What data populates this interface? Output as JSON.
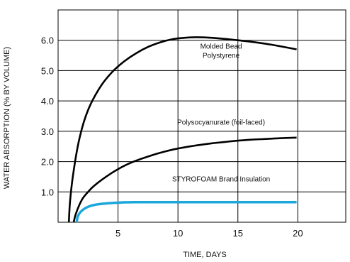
{
  "chart_data": {
    "type": "line",
    "title": "",
    "xlabel": "TIME, DAYS",
    "ylabel": "WATER ABSORPTION (% BY VOLUME)",
    "xlim": [
      0,
      24
    ],
    "ylim": [
      0,
      7
    ],
    "x_ticks": [
      5,
      10,
      15,
      20
    ],
    "x_tick_labels": [
      "5",
      "10",
      "15",
      "20"
    ],
    "y_ticks": [
      1,
      2,
      3,
      4,
      5,
      6
    ],
    "y_tick_labels": [
      "1.0",
      "2.0",
      "3.0",
      "4.0",
      "5.0",
      "6.0"
    ],
    "grid": true,
    "legend": "none",
    "colors": {
      "curve": "#000000",
      "styrofoam": "#1aa7dc",
      "grid": "#000000"
    },
    "series": [
      {
        "name": "Molded Bead Polystyrene",
        "annotation_lines": [
          "Molded Bead",
          "Polystyrene"
        ],
        "color": "#000000",
        "x": [
          0.9,
          1.0,
          1.3,
          1.8,
          2.5,
          3.5,
          4.5,
          5.5,
          6.5,
          7.5,
          8.5,
          9.5,
          10.5,
          11.5,
          12.5,
          13.5,
          15,
          16.5,
          18,
          19.9
        ],
        "y": [
          0,
          0.7,
          1.7,
          2.8,
          3.7,
          4.45,
          4.95,
          5.3,
          5.57,
          5.78,
          5.93,
          6.03,
          6.08,
          6.1,
          6.09,
          6.06,
          6.0,
          5.93,
          5.84,
          5.7
        ]
      },
      {
        "name": "Polysocyanurate (foil-faced)",
        "annotation_lines": [
          "Polysocyanurate (foil-faced)"
        ],
        "color": "#000000",
        "x": [
          1.3,
          1.5,
          2.0,
          2.5,
          3.0,
          4.0,
          5.0,
          6.0,
          7.0,
          8.0,
          9.0,
          10.0,
          11.0,
          12.0,
          13.0,
          14.0,
          15.0,
          16.0,
          17.0,
          18.0,
          19.0,
          19.9
        ],
        "y": [
          0,
          0.3,
          0.75,
          1.0,
          1.2,
          1.5,
          1.75,
          1.95,
          2.1,
          2.23,
          2.34,
          2.43,
          2.5,
          2.56,
          2.61,
          2.65,
          2.69,
          2.72,
          2.74,
          2.76,
          2.78,
          2.79
        ]
      },
      {
        "name": "STYROFOAM Brand Insulation",
        "annotation_lines": [
          "STYROFOAM Brand Insulation"
        ],
        "color": "#1aa7dc",
        "x": [
          1.55,
          1.65,
          1.9,
          2.3,
          2.8,
          3.5,
          4.3,
          5.2,
          6.3,
          8.0,
          10.0,
          12.0,
          15.0,
          18.0,
          19.9
        ],
        "y": [
          0,
          0.2,
          0.35,
          0.47,
          0.55,
          0.6,
          0.63,
          0.65,
          0.66,
          0.66,
          0.66,
          0.66,
          0.66,
          0.66,
          0.66
        ]
      }
    ]
  }
}
